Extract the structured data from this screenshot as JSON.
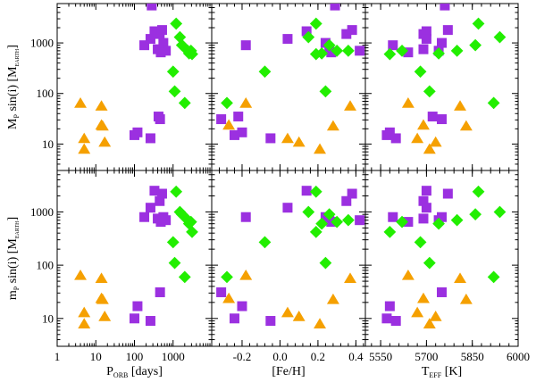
{
  "chart_data": {
    "type": "scatter",
    "colors": {
      "purple": "#9b30e0",
      "green": "#22ee00",
      "orange": "#f5a000"
    },
    "markers": {
      "purple": "square",
      "green": "diamond",
      "orange": "triangle"
    },
    "rows": [
      {
        "ylabel_main": "M",
        "ylabel_sub": "P",
        "ylabel_rest": " sin(i) [M",
        "ylabel_unit": "EARTH",
        "ylabel_close": "]"
      },
      {
        "ylabel_main": "m",
        "ylabel_sub": "P",
        "ylabel_rest": " sin(i) [M",
        "ylabel_unit": "EARTH",
        "ylabel_close": "]"
      }
    ],
    "yaxis": {
      "scale": "log",
      "range": [
        3,
        6000
      ],
      "ticks": [
        10,
        100,
        1000
      ],
      "ticklabels": [
        "10",
        "100",
        "1000"
      ]
    },
    "columns": [
      {
        "xlabel_main": "P",
        "xlabel_sub": "ORB",
        "xlabel_rest": " [days]",
        "scale": "log",
        "range": [
          1,
          10000
        ],
        "ticks": [
          1,
          10,
          100,
          1000
        ],
        "ticklabels": [
          "1",
          "10",
          "100",
          "1000"
        ]
      },
      {
        "xlabel_main": "[Fe/H]",
        "xlabel_sub": "",
        "xlabel_rest": "",
        "scale": "linear",
        "range": [
          -0.36,
          0.45
        ],
        "ticks": [
          -0.2,
          0.0,
          0.2,
          0.4
        ],
        "ticklabels": [
          "-0.2",
          "0.0",
          "0.2",
          "0.4"
        ]
      },
      {
        "xlabel_main": "T",
        "xlabel_sub": "EFF",
        "xlabel_rest": " [K]",
        "scale": "linear",
        "range": [
          5500,
          6000
        ],
        "ticks": [
          5550,
          5700,
          5850,
          6000
        ],
        "ticklabels": [
          "5550",
          "5700",
          "5850",
          "6000"
        ]
      }
    ],
    "series": [
      {
        "color": "purple",
        "P": [
          280,
          330,
          450,
          520,
          560,
          650,
          400,
          480,
          180,
          260,
          460,
          420,
          120,
          100,
          260
        ],
        "FeH": [
          0.29,
          0.14,
          0.35,
          0.38,
          0.24,
          0.42,
          0.26,
          0.27,
          -0.18,
          0.04,
          -0.31,
          -0.22,
          -0.2,
          -0.24,
          -0.05
        ],
        "Teff": [
          5760,
          5700,
          5690,
          5770,
          5750,
          5740,
          5690,
          5640,
          5590,
          5700,
          5750,
          5720,
          5580,
          5570,
          5600
        ],
        "M": [
          5500,
          1700,
          1500,
          1800,
          1000,
          700,
          750,
          650,
          900,
          1200,
          31,
          35,
          17,
          15,
          13
        ],
        "m": [
          null,
          2500,
          1600,
          2200,
          800,
          700,
          750,
          650,
          800,
          1200,
          31,
          null,
          17,
          10,
          9
        ]
      },
      {
        "color": "green",
        "P": [
          1200,
          1500,
          1700,
          2400,
          2900,
          2600,
          3100,
          1000,
          1100,
          2000
        ],
        "FeH": [
          0.19,
          0.15,
          0.26,
          0.36,
          0.3,
          0.22,
          0.19,
          -0.08,
          0.24,
          -0.28
        ],
        "Teff": [
          5870,
          5940,
          5860,
          5800,
          5620,
          5740,
          5580,
          5680,
          5710,
          5920
        ],
        "M": [
          2400,
          1300,
          900,
          700,
          700,
          620,
          600,
          270,
          110,
          65
        ],
        "m": [
          2400,
          1000,
          900,
          700,
          650,
          600,
          420,
          270,
          110,
          60
        ]
      },
      {
        "color": "orange",
        "P": [
          4,
          5,
          5,
          14,
          15,
          17,
          14
        ],
        "FeH": [
          -0.18,
          0.04,
          0.21,
          0.37,
          0.28,
          0.1,
          -0.27
        ],
        "Teff": [
          5640,
          5670,
          5710,
          5810,
          5830,
          5730,
          5690
        ],
        "M": [
          65,
          13,
          8,
          57,
          23,
          11,
          24
        ],
        "m": [
          65,
          13,
          8,
          57,
          23,
          11,
          24
        ]
      }
    ]
  }
}
